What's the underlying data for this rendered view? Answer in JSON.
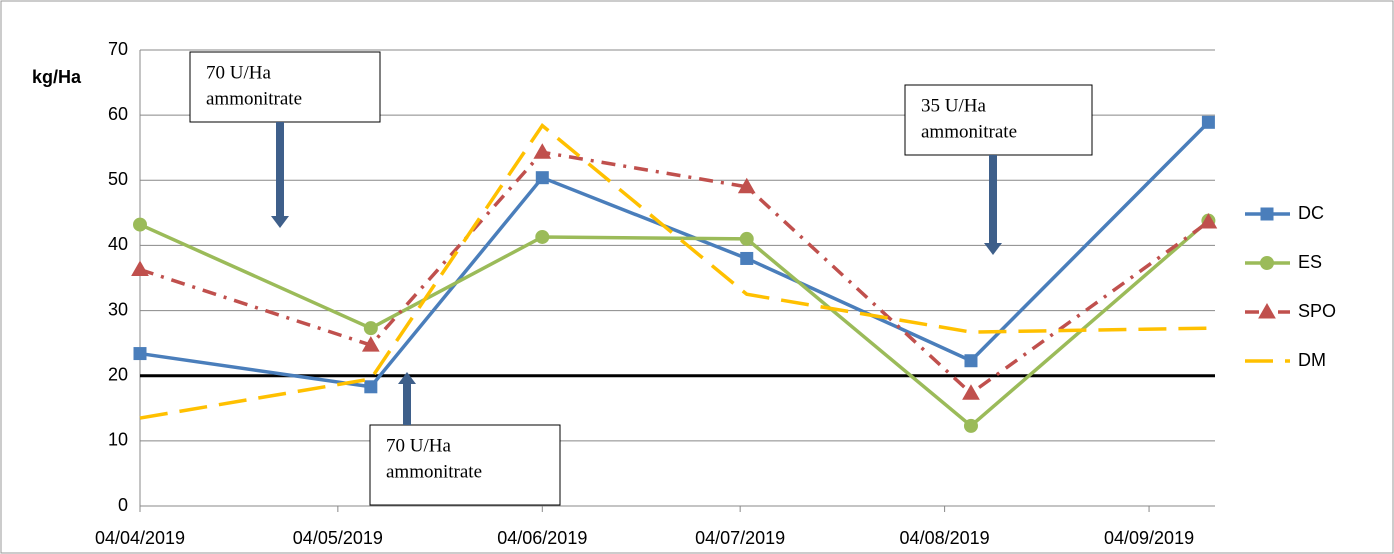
{
  "chart_data": {
    "type": "line",
    "y_label": "kg/Ha",
    "x": [
      "2019-04-04",
      "2019-05-09",
      "2019-06-04",
      "2019-07-05",
      "2019-08-08",
      "2019-09-13"
    ],
    "xlim": [
      "2019-04-04",
      "2019-09-14"
    ],
    "xticks": [
      {
        "value": "2019-04-04",
        "label": "04/04/2019"
      },
      {
        "value": "2019-05-04",
        "label": "04/05/2019"
      },
      {
        "value": "2019-06-04",
        "label": "04/06/2019"
      },
      {
        "value": "2019-07-04",
        "label": "04/07/2019"
      },
      {
        "value": "2019-08-04",
        "label": "04/08/2019"
      },
      {
        "value": "2019-09-04",
        "label": "04/09/2019"
      }
    ],
    "ylim": [
      0,
      70
    ],
    "yticks": [
      0,
      10,
      20,
      30,
      40,
      50,
      60,
      70
    ],
    "grid": true,
    "reference_line": 20,
    "legend": "right",
    "series": [
      {
        "name": "DC",
        "color": "#4a7ebb",
        "marker": "square",
        "dash": "solid",
        "values": [
          23.4,
          18.3,
          50.4,
          38.0,
          22.3,
          58.9
        ]
      },
      {
        "name": "ES",
        "color": "#9bbb59",
        "marker": "circle",
        "dash": "solid",
        "values": [
          43.2,
          27.3,
          41.3,
          41.0,
          12.3,
          43.8
        ]
      },
      {
        "name": "SPO",
        "color": "#c0504d",
        "marker": "triangle",
        "dash": "dashdot",
        "values": [
          36.3,
          24.7,
          54.3,
          49.0,
          17.3,
          43.6
        ]
      },
      {
        "name": "DM",
        "color": "#ffc000",
        "marker": "none",
        "dash": "longdash",
        "values": [
          13.5,
          19.5,
          58.4,
          32.5,
          26.7,
          27.3
        ]
      }
    ],
    "annotations": [
      {
        "lines": [
          "70 U/Ha",
          "ammonitrate"
        ]
      },
      {
        "lines": [
          "70 U/Ha",
          "ammonitrate"
        ]
      },
      {
        "lines": [
          "35 U/Ha",
          "ammonitrate"
        ]
      }
    ]
  }
}
